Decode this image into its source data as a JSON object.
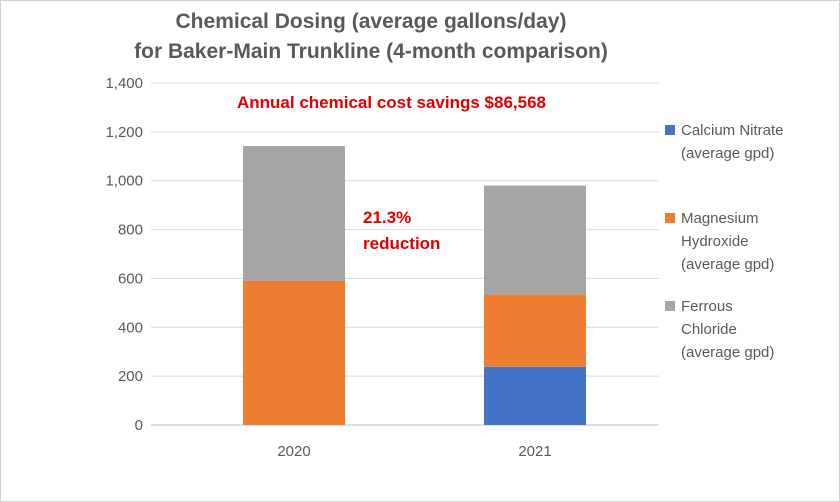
{
  "chart_data": {
    "type": "bar",
    "stacked": true,
    "title_lines": [
      "Chemical Dosing (average gallons/day)",
      "for Baker-Main Trunkline (4-month comparison)"
    ],
    "categories": [
      "2020",
      "2021"
    ],
    "series": [
      {
        "name": "Calcium Nitrate (average gpd)",
        "name_lines": [
          "Calcium Nitrate",
          "(average gpd)"
        ],
        "color": "#4472C4",
        "values": [
          0,
          238
        ]
      },
      {
        "name": "Magnesium Hydroxide (average gpd)",
        "name_lines": [
          "Magnesium",
          "Hydroxide",
          "(average gpd)"
        ],
        "color": "#ED7D31",
        "values": [
          590,
          297
        ]
      },
      {
        "name": "Ferrous Chloride (average gpd)",
        "name_lines": [
          "Ferrous",
          "Chloride",
          "(average gpd)"
        ],
        "color": "#A5A5A5",
        "values": [
          552,
          445
        ]
      }
    ],
    "ylim": [
      0,
      1400
    ],
    "yticks": [
      "0",
      "200",
      "400",
      "600",
      "800",
      "1,000",
      "1,200",
      "1,400"
    ],
    "grid": true,
    "legend_position": "right",
    "annotations": {
      "savings": "Annual chemical cost savings $86,568",
      "reduction_lines": [
        "21.3%",
        "reduction"
      ]
    }
  }
}
